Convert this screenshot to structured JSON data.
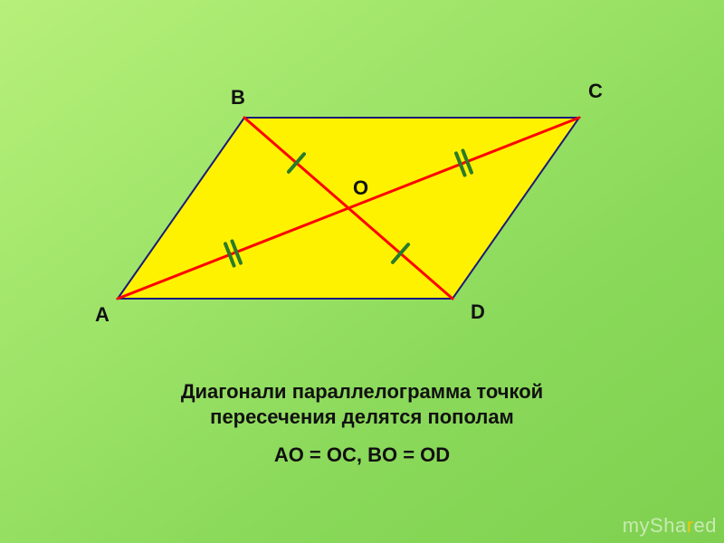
{
  "background": {
    "gradient_stops": [
      "#b7f07a",
      "#a0e56a",
      "#8ad95a",
      "#7fd050"
    ]
  },
  "parallelogram": {
    "fill": "#fff200",
    "stroke": "#1a1a7a",
    "stroke_width": 2,
    "points": {
      "A": [
        130,
        330
      ],
      "B": [
        270,
        130
      ],
      "C": [
        640,
        130
      ],
      "D": [
        500,
        330
      ]
    },
    "center_label": "O",
    "vertex_labels": {
      "A": "A",
      "B": "B",
      "C": "C",
      "D": "D"
    },
    "label_positions": {
      "A": [
        105,
        335
      ],
      "B": [
        255,
        95
      ],
      "C": [
        650,
        88
      ],
      "D": [
        520,
        332
      ],
      "O": [
        390,
        195
      ]
    },
    "label_fontsize": 22,
    "label_fontweight": "bold"
  },
  "diagonals": {
    "color": "#ff0000",
    "width": 3,
    "AC": {
      "from": "A",
      "to": "C"
    },
    "BD": {
      "from": "B",
      "to": "D"
    }
  },
  "ticks": {
    "color": "#2a7a2a",
    "width": 4,
    "length": 26,
    "AO": {
      "style": "single"
    },
    "OC": {
      "style": "single"
    },
    "BO": {
      "style": "double"
    },
    "OD": {
      "style": "double"
    },
    "double_gap": 8
  },
  "caption": {
    "line1": "Диагонали параллелограмма точкой",
    "line2": "пересечения делятся пополам",
    "equation": "AO = OC, BO = OD",
    "fontsize_text": 22,
    "fontsize_eq": 22,
    "top_line1": 420,
    "top_line2": 448,
    "top_eq": 490,
    "color": "#111111"
  },
  "watermark": {
    "prefix": "mySha",
    "accent": "r",
    "suffix": "ed"
  }
}
